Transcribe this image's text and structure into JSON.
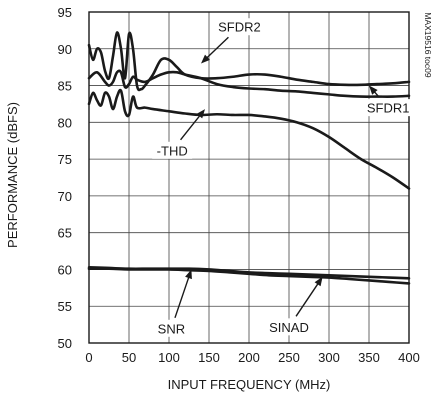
{
  "chart_data": {
    "type": "line",
    "xlabel": "INPUT FREQUENCY (MHz)",
    "ylabel": "PERFORMANCE (dBFS)",
    "xlim": [
      0,
      400
    ],
    "ylim": [
      50,
      95
    ],
    "xticks": [
      0,
      50,
      100,
      150,
      200,
      250,
      300,
      350,
      400
    ],
    "yticks": [
      50,
      55,
      60,
      65,
      70,
      75,
      80,
      85,
      90,
      95
    ],
    "grid": true,
    "code_label": "MAX19516 toc09",
    "series": [
      {
        "name": "SFDR2",
        "x": [
          0,
          5,
          10,
          15,
          20,
          25,
          30,
          35,
          40,
          45,
          50,
          55,
          60,
          65,
          70,
          80,
          90,
          100,
          110,
          120,
          140,
          160,
          180,
          200,
          220,
          240,
          260,
          280,
          300,
          320,
          340,
          360,
          380,
          400
        ],
        "y": [
          90.5,
          88.5,
          90,
          89.5,
          87,
          86,
          89,
          92.2,
          90,
          86,
          92,
          90,
          85,
          84.5,
          85,
          86.5,
          88.5,
          88.5,
          87.5,
          86.5,
          86,
          86,
          86.2,
          86.5,
          86.5,
          86.2,
          85.8,
          85.5,
          85.2,
          85.1,
          85.1,
          85.2,
          85.3,
          85.5
        ]
      },
      {
        "name": "SFDR1",
        "x": [
          0,
          10,
          20,
          25,
          30,
          35,
          40,
          45,
          50,
          55,
          60,
          70,
          80,
          90,
          100,
          110,
          120,
          140,
          160,
          180,
          200,
          220,
          240,
          260,
          280,
          300,
          320,
          340,
          360,
          380,
          400
        ],
        "y": [
          86,
          86.8,
          85.5,
          85,
          85.5,
          86.8,
          86.8,
          84.8,
          85.2,
          86.2,
          85.8,
          85.5,
          86,
          86.5,
          86.8,
          86.8,
          86.5,
          86,
          85.2,
          84.8,
          84.6,
          84.5,
          84.3,
          84.2,
          84,
          83.8,
          83.6,
          83.5,
          83.5,
          83.5,
          83.6
        ]
      },
      {
        "name": "-THD",
        "x": [
          0,
          5,
          10,
          15,
          20,
          25,
          30,
          35,
          40,
          45,
          50,
          55,
          60,
          70,
          80,
          100,
          120,
          140,
          160,
          180,
          200,
          220,
          240,
          260,
          280,
          300,
          320,
          340,
          360,
          380,
          400
        ],
        "y": [
          82.5,
          84,
          83,
          82.3,
          84,
          83.5,
          81.8,
          83.5,
          84.3,
          81.5,
          81,
          83.5,
          82,
          82,
          81.8,
          81.5,
          81.2,
          81,
          81.1,
          81,
          81,
          80.8,
          80.5,
          80,
          79.2,
          78,
          76.5,
          75,
          73.8,
          72.5,
          71
        ]
      },
      {
        "name": "SNR",
        "x": [
          0,
          25,
          50,
          75,
          100,
          125,
          150,
          175,
          200,
          225,
          250,
          275,
          300,
          325,
          350,
          375,
          400
        ],
        "y": [
          60.3,
          60.2,
          60.1,
          60.1,
          60.1,
          60.1,
          60.0,
          59.8,
          59.6,
          59.5,
          59.4,
          59.3,
          59.2,
          59.1,
          59.0,
          58.9,
          58.8
        ]
      },
      {
        "name": "SINAD",
        "x": [
          0,
          25,
          50,
          75,
          100,
          125,
          150,
          175,
          200,
          225,
          250,
          275,
          300,
          325,
          350,
          375,
          400
        ],
        "y": [
          60.1,
          60.1,
          60.0,
          60.0,
          60.0,
          59.9,
          59.8,
          59.6,
          59.4,
          59.2,
          59.1,
          59.0,
          58.9,
          58.7,
          58.5,
          58.3,
          58.1
        ]
      }
    ],
    "annotations": [
      {
        "text": "SFDR2",
        "label_x": 188,
        "label_y": 93,
        "arrow_to": [
          140,
          88
        ]
      },
      {
        "text": "SFDR1",
        "label_x": 374,
        "label_y": 82,
        "arrow_to": [
          350,
          85
        ]
      },
      {
        "text": "-THD",
        "label_x": 104,
        "label_y": 76.2,
        "arrow_to": [
          145,
          81.8
        ]
      },
      {
        "text": "SNR",
        "label_x": 103,
        "label_y": 52,
        "arrow_to": [
          128,
          60
        ]
      },
      {
        "text": "SINAD",
        "label_x": 250,
        "label_y": 52.2,
        "arrow_to": [
          292,
          59
        ]
      }
    ]
  }
}
